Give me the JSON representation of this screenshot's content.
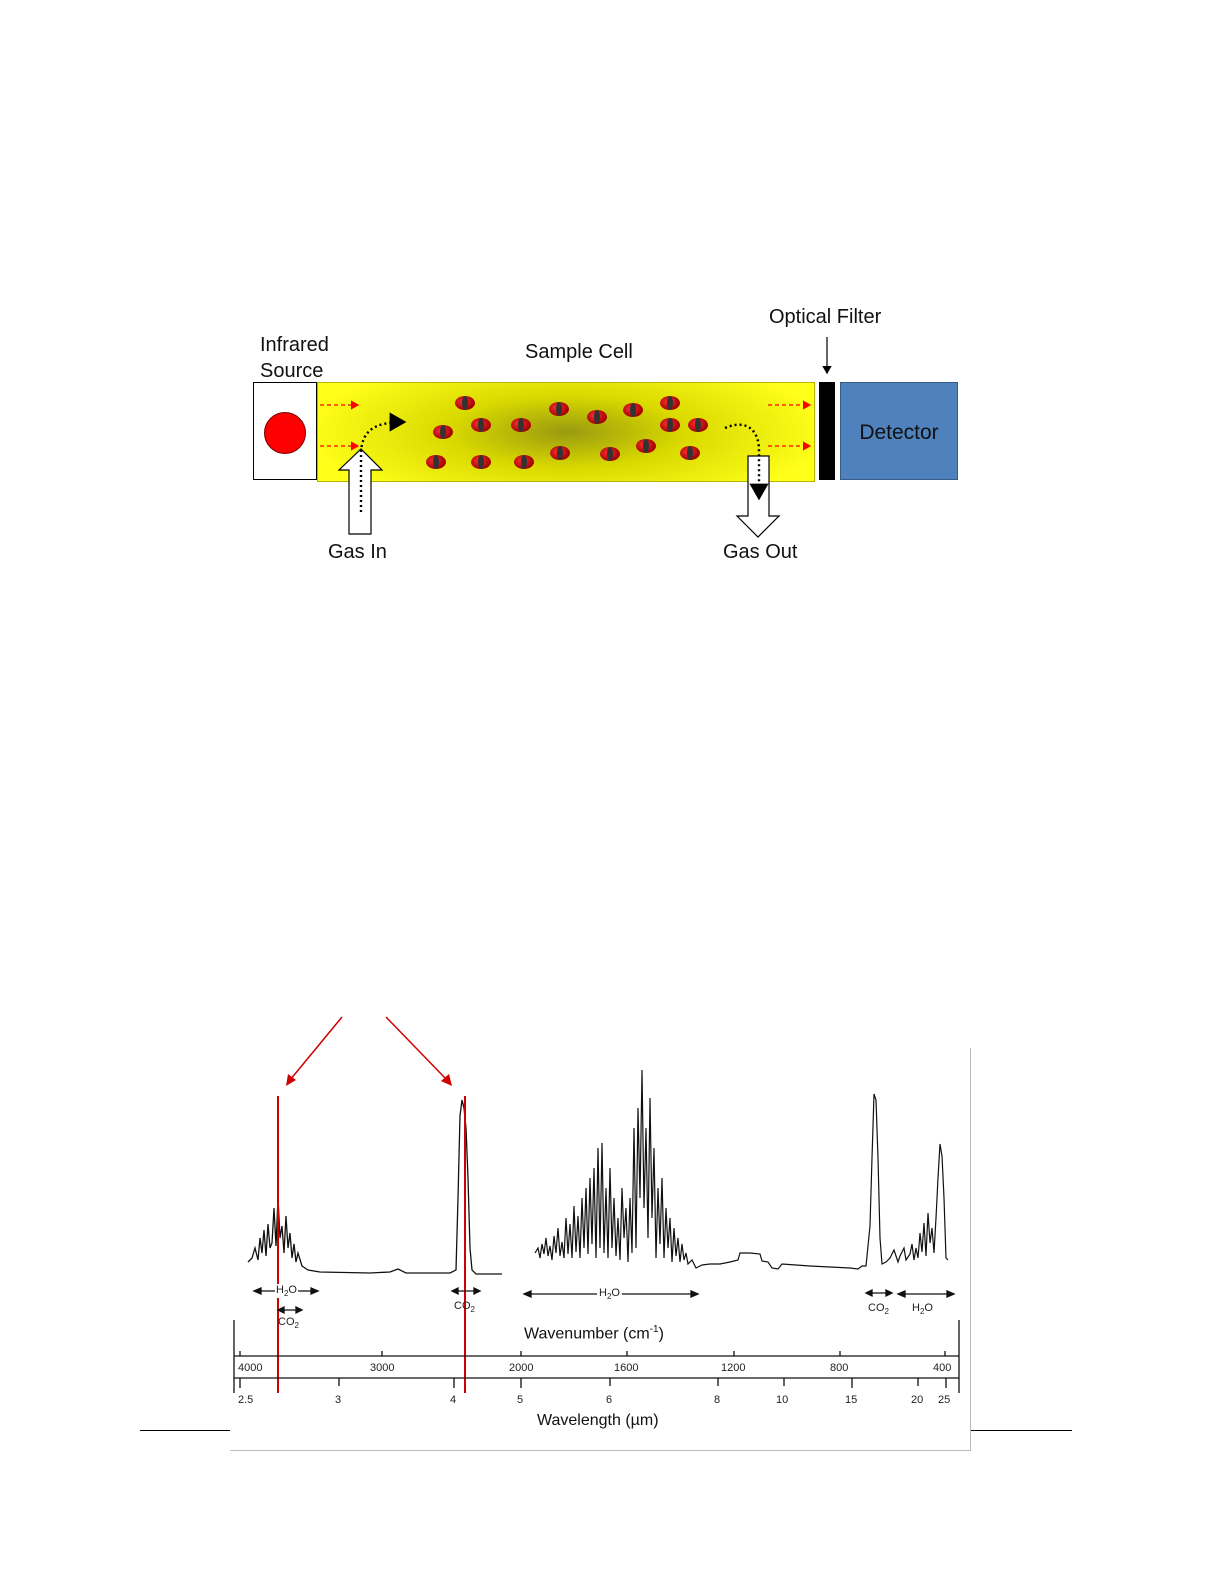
{
  "diagram": {
    "labels": {
      "infrared_source_line1": "Infrared",
      "infrared_source_line2": "Source",
      "sample_cell": "Sample Cell",
      "optical_filter": "Optical Filter",
      "detector": "Detector",
      "gas_in": "Gas In",
      "gas_out": "Gas Out"
    },
    "colors": {
      "cell": "#ffff1a",
      "source": "#ff0000",
      "detector": "#4f81bd",
      "molecule": "#cc0000",
      "beam": "#ff0000"
    }
  },
  "spectrum": {
    "band_labels": {
      "h2o_left": "H2O",
      "co2_left": "CO2",
      "co2_mid": "CO2",
      "h2o_mid": "H2O",
      "co2_right": "CO2",
      "h2o_right": "H2O"
    },
    "wavenumber_title": "Wavenumber (cm",
    "wavenumber_exp": "-1",
    "wavenumber_close": ")",
    "wavelength_title": "Wavelength (µm)",
    "wavenumber_ticks": [
      "4000",
      "3000",
      "2000",
      "1600",
      "1200",
      "800",
      "400"
    ],
    "wavelength_ticks": [
      "2.5",
      "3",
      "4",
      "5",
      "6",
      "8",
      "10",
      "15",
      "20",
      "25"
    ],
    "highlight_color": "#d00000"
  }
}
